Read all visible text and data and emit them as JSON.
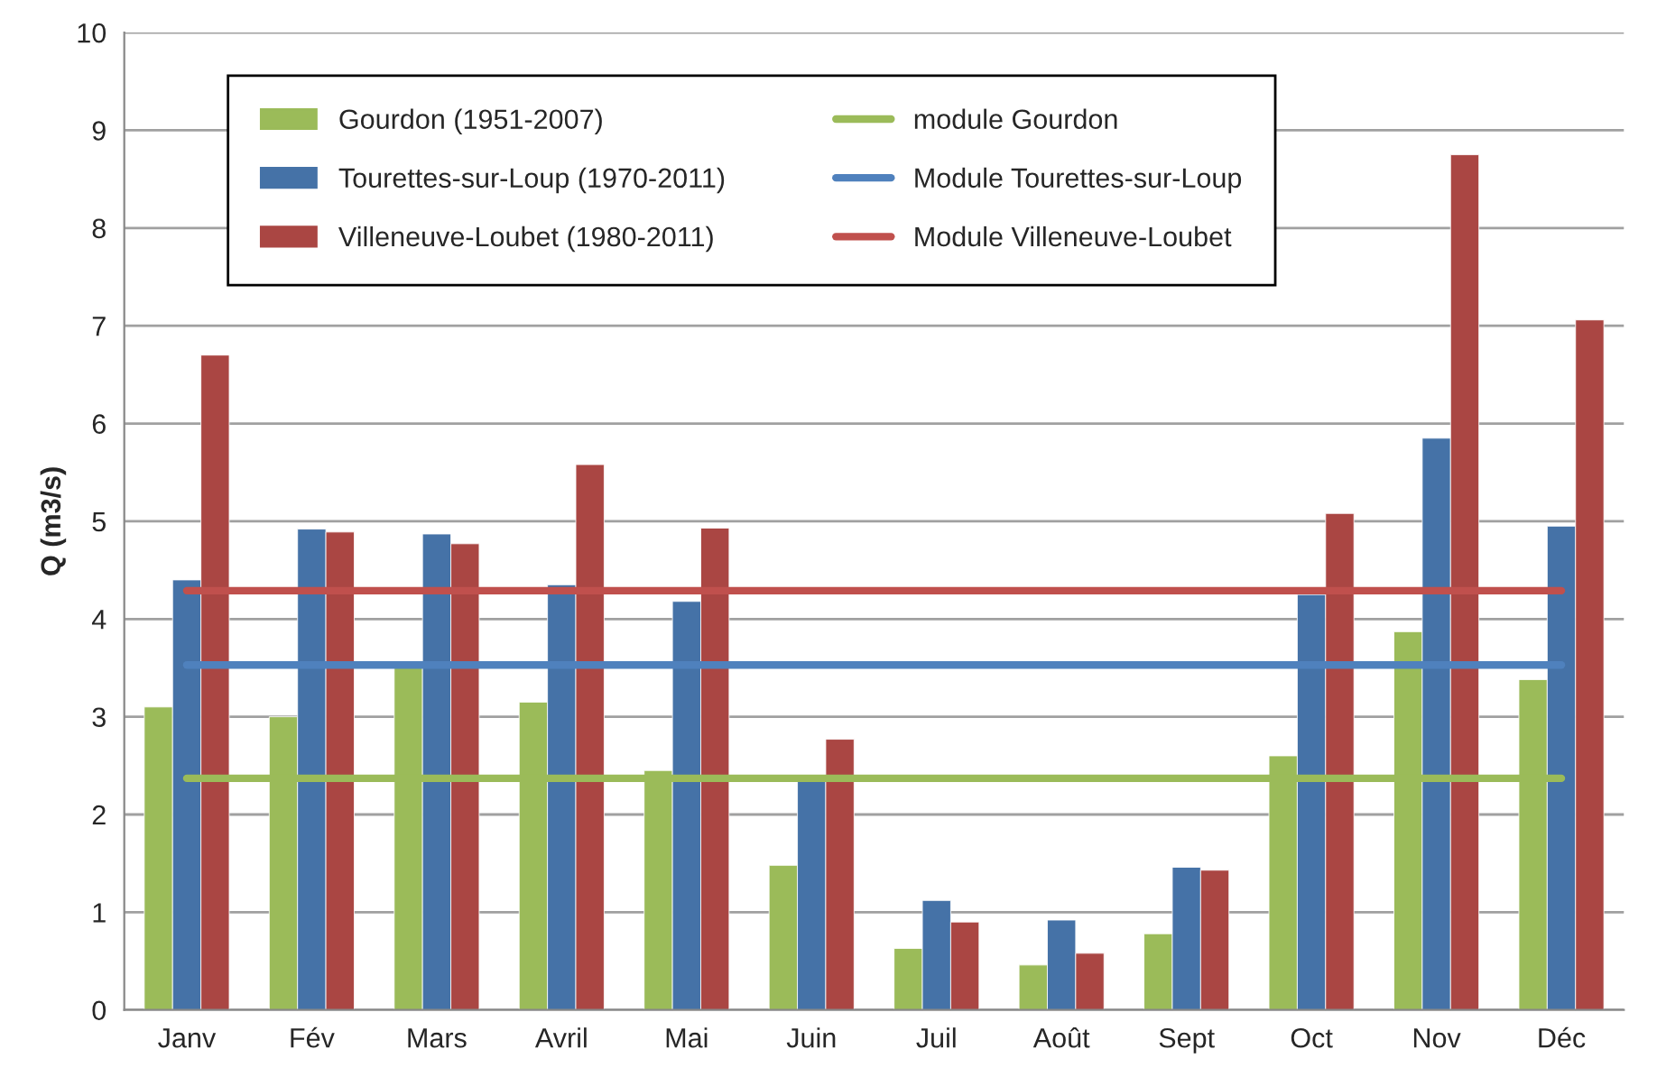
{
  "chart_data": {
    "type": "bar",
    "ylabel": "Q (m3/s)",
    "categories": [
      "Janv",
      "Fév",
      "Mars",
      "Avril",
      "Mai",
      "Juin",
      "Juil",
      "Août",
      "Sept",
      "Oct",
      "Nov",
      "Déc"
    ],
    "series": [
      {
        "name": "Gourdon (1951-2007)",
        "color": "#9bbb59",
        "values": [
          3.1,
          3.0,
          3.5,
          3.15,
          2.45,
          1.48,
          0.63,
          0.46,
          0.78,
          2.6,
          3.87,
          3.38
        ]
      },
      {
        "name": "Tourettes-sur-Loup (1970-2011)",
        "color": "#4572a7",
        "values": [
          4.4,
          4.92,
          4.87,
          4.35,
          4.18,
          2.35,
          1.12,
          0.92,
          1.46,
          4.25,
          5.85,
          4.95
        ]
      },
      {
        "name": "Villeneuve-Loubet (1980-2011)",
        "color": "#aa4643",
        "values": [
          6.7,
          4.89,
          4.77,
          5.58,
          4.93,
          2.77,
          0.9,
          0.58,
          1.43,
          5.08,
          8.75,
          7.06
        ]
      },
      {
        "name": "module Gourdon",
        "type": "line",
        "color": "#9bbb59",
        "values": [
          2.37,
          2.37,
          2.37,
          2.37,
          2.37,
          2.37,
          2.37,
          2.37,
          2.37,
          2.37,
          2.37,
          2.37
        ]
      },
      {
        "name": "Module Tourettes-sur-Loup",
        "type": "line",
        "color": "#4f81bd",
        "values": [
          3.53,
          3.53,
          3.53,
          3.53,
          3.53,
          3.53,
          3.53,
          3.53,
          3.53,
          3.53,
          3.53,
          3.53
        ]
      },
      {
        "name": "Module Villeneuve-Loubet",
        "type": "line",
        "color": "#c0504d",
        "values": [
          4.29,
          4.29,
          4.29,
          4.29,
          4.29,
          4.29,
          4.29,
          4.29,
          4.29,
          4.29,
          4.29,
          4.29
        ]
      }
    ],
    "ylim": [
      0,
      10
    ],
    "yticks": [
      0,
      1,
      2,
      3,
      4,
      5,
      6,
      7,
      8,
      9,
      10
    ],
    "grid": "y",
    "legend": "top left",
    "marker": "none",
    "line_style": "solid"
  }
}
